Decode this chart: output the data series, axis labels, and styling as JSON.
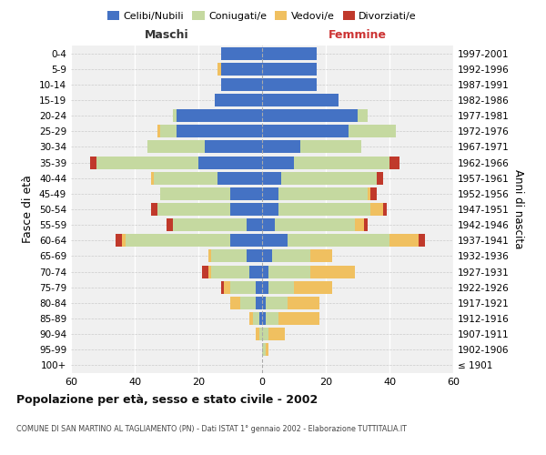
{
  "age_groups": [
    "100+",
    "95-99",
    "90-94",
    "85-89",
    "80-84",
    "75-79",
    "70-74",
    "65-69",
    "60-64",
    "55-59",
    "50-54",
    "45-49",
    "40-44",
    "35-39",
    "30-34",
    "25-29",
    "20-24",
    "15-19",
    "10-14",
    "5-9",
    "0-4"
  ],
  "birth_years": [
    "≤ 1901",
    "1902-1906",
    "1907-1911",
    "1912-1916",
    "1917-1921",
    "1922-1926",
    "1927-1931",
    "1932-1936",
    "1937-1941",
    "1942-1946",
    "1947-1951",
    "1952-1956",
    "1957-1961",
    "1962-1966",
    "1967-1971",
    "1972-1976",
    "1977-1981",
    "1982-1986",
    "1987-1991",
    "1992-1996",
    "1997-2001"
  ],
  "colors": {
    "celibi": "#4472c4",
    "coniugati": "#c5d9a0",
    "vedovi": "#f0c060",
    "divorziati": "#c0392b"
  },
  "maschi": {
    "celibi": [
      0,
      0,
      0,
      1,
      2,
      2,
      4,
      5,
      10,
      5,
      10,
      10,
      14,
      20,
      18,
      27,
      27,
      15,
      13,
      13,
      13
    ],
    "coniugati": [
      0,
      0,
      1,
      2,
      5,
      8,
      12,
      11,
      33,
      23,
      23,
      22,
      20,
      32,
      18,
      5,
      1,
      0,
      0,
      0,
      0
    ],
    "vedovi": [
      0,
      0,
      1,
      1,
      3,
      2,
      1,
      1,
      1,
      0,
      0,
      0,
      1,
      0,
      0,
      1,
      0,
      0,
      0,
      1,
      0
    ],
    "divorziati": [
      0,
      0,
      0,
      0,
      0,
      1,
      2,
      0,
      2,
      2,
      2,
      0,
      0,
      2,
      0,
      0,
      0,
      0,
      0,
      0,
      0
    ]
  },
  "femmine": {
    "celibi": [
      0,
      0,
      0,
      1,
      1,
      2,
      2,
      3,
      8,
      4,
      5,
      5,
      6,
      10,
      12,
      27,
      30,
      24,
      17,
      17,
      17
    ],
    "coniugati": [
      0,
      1,
      2,
      4,
      7,
      8,
      13,
      12,
      32,
      25,
      29,
      28,
      30,
      30,
      19,
      15,
      3,
      0,
      0,
      0,
      0
    ],
    "vedovi": [
      0,
      1,
      5,
      13,
      10,
      12,
      14,
      7,
      9,
      3,
      4,
      1,
      0,
      0,
      0,
      0,
      0,
      0,
      0,
      0,
      0
    ],
    "divorziati": [
      0,
      0,
      0,
      0,
      0,
      0,
      0,
      0,
      2,
      1,
      1,
      2,
      2,
      3,
      0,
      0,
      0,
      0,
      0,
      0,
      0
    ]
  },
  "xlim": 60,
  "title": "Popolazione per età, sesso e stato civile - 2002",
  "subtitle": "COMUNE DI SAN MARTINO AL TAGLIAMENTO (PN) - Dati ISTAT 1° gennaio 2002 - Elaborazione TUTTITALIA.IT",
  "ylabel_left": "Fasce di età",
  "ylabel_right": "Anni di nascita",
  "bg_color": "#f0f0f0",
  "maschi_label_color": "#333333",
  "femmine_label_color": "#cc3333"
}
